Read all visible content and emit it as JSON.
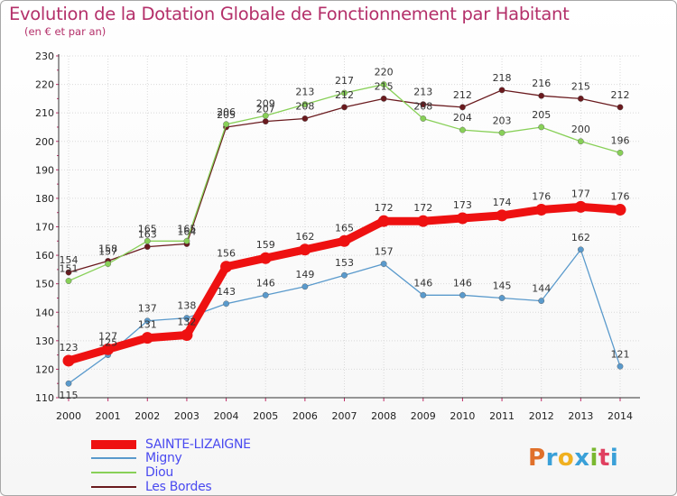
{
  "title": "Evolution de la Dotation Globale de Fonctionnement par Habitant",
  "subtitle": "(en € et par an)",
  "logo": "Proxiti",
  "logo_colors": [
    "#e0702a",
    "#3aa0d8",
    "#f0b020",
    "#3aa0d8",
    "#7ab830",
    "#e04060",
    "#3aa0d8"
  ],
  "chart_data": {
    "type": "line",
    "x": [
      2000,
      2001,
      2002,
      2003,
      2004,
      2005,
      2006,
      2007,
      2008,
      2009,
      2010,
      2011,
      2012,
      2013,
      2014
    ],
    "ylim": [
      110,
      230
    ],
    "yticks": [
      110,
      120,
      130,
      140,
      150,
      160,
      170,
      180,
      190,
      200,
      210,
      220,
      230
    ],
    "series": [
      {
        "name": "Les Bordes",
        "color": "#6a1a1e",
        "thick": false,
        "values": [
          154,
          158,
          163,
          164,
          205,
          207,
          208,
          212,
          215,
          213,
          212,
          218,
          216,
          215,
          212
        ]
      },
      {
        "name": "Diou",
        "color": "#88d058",
        "thick": false,
        "values": [
          151,
          157,
          165,
          165,
          206,
          209,
          213,
          217,
          220,
          208,
          204,
          203,
          205,
          200,
          196
        ]
      },
      {
        "name": "Migny",
        "color": "#5a9acc",
        "thick": false,
        "values": [
          115,
          125,
          137,
          138,
          143,
          146,
          149,
          153,
          157,
          146,
          146,
          145,
          144,
          162,
          121
        ]
      },
      {
        "name": "SAINTE-LIZAIGNE",
        "color": "#ee1111",
        "thick": true,
        "values": [
          123,
          127,
          131,
          132,
          156,
          159,
          162,
          165,
          172,
          172,
          173,
          174,
          176,
          177,
          176
        ]
      }
    ],
    "legend": [
      "SAINTE-LIZAIGNE",
      "Migny",
      "Diou",
      "Les Bordes"
    ]
  }
}
